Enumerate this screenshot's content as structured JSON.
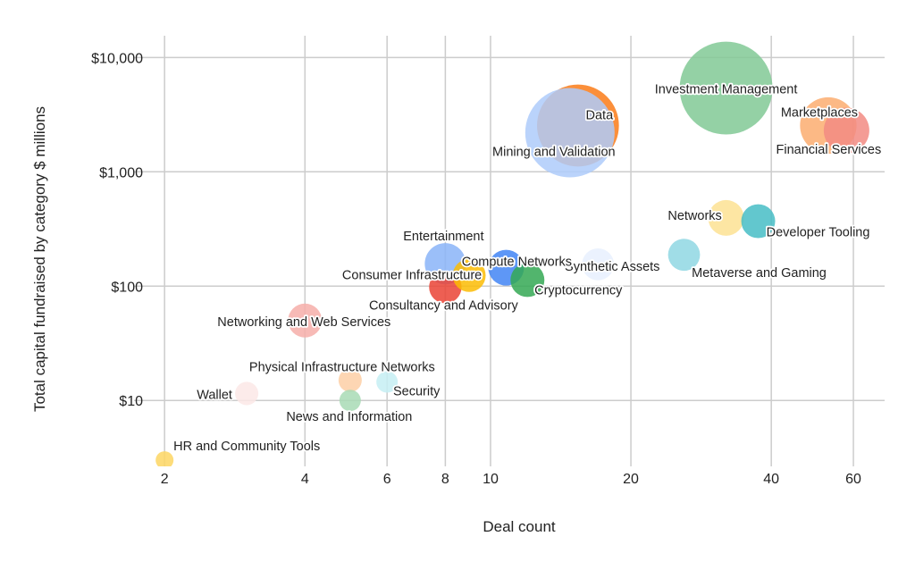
{
  "chart_data": {
    "type": "bubble",
    "title": "",
    "xlabel": "Deal count",
    "ylabel": "Total capital fundraised by category $ millions",
    "x_scale": "log",
    "y_scale": "log",
    "xlim": [
      1.72,
      70
    ],
    "ylim": [
      2.65,
      15500
    ],
    "grid": true,
    "x_ticks": [
      2,
      4,
      6,
      8,
      10,
      20,
      40,
      60
    ],
    "x_tick_labels": [
      "2",
      "4",
      "6",
      "8",
      "10",
      "20",
      "40",
      "60"
    ],
    "y_ticks": [
      10,
      100,
      1000,
      10000
    ],
    "y_tick_labels": [
      "$10",
      "$100",
      "$1,000",
      "$10,000"
    ],
    "points": [
      {
        "label": "Investment Management",
        "x": 32,
        "y": 5400,
        "size": 2700,
        "color": "#81c995"
      },
      {
        "label": "Data",
        "x": 15.4,
        "y": 2540,
        "size": 2100,
        "color": "#fa7b17"
      },
      {
        "label": "Mining and Validation",
        "x": 14.8,
        "y": 2200,
        "size": 2500,
        "color": "#aecbfa"
      },
      {
        "label": "Marketplaces",
        "x": 53,
        "y": 2540,
        "size": 1000,
        "color": "#fcad70"
      },
      {
        "label": "Financial Services",
        "x": 58,
        "y": 2300,
        "size": 650,
        "color": "#f28b82"
      },
      {
        "label": "Networks",
        "x": 32,
        "y": 395,
        "size": 400,
        "color": "#fde293"
      },
      {
        "label": "Developer Tooling",
        "x": 37.5,
        "y": 370,
        "size": 360,
        "color": "#46bdc6"
      },
      {
        "label": "Metaverse and Gaming",
        "x": 26,
        "y": 188,
        "size": 320,
        "color": "#8fd7e3"
      },
      {
        "label": "Synthetic Assets",
        "x": 17,
        "y": 155,
        "size": 320,
        "color": "#e8f0fe"
      },
      {
        "label": "Compute Networks",
        "x": 10.8,
        "y": 145,
        "size": 400,
        "color": "#4285f4"
      },
      {
        "label": "Entertainment",
        "x": 8,
        "y": 157,
        "size": 530,
        "color": "#8ab4f8"
      },
      {
        "label": "Consultancy and Advisory",
        "x": 8,
        "y": 98,
        "size": 330,
        "color": "#ea4335"
      },
      {
        "label": "Consumer Infrastructure",
        "x": 9,
        "y": 124,
        "size": 340,
        "color": "#fbbc04"
      },
      {
        "label": "Cryptocurrency",
        "x": 12,
        "y": 113,
        "size": 360,
        "color": "#34a853"
      },
      {
        "label": "Networking and Web Services",
        "x": 4,
        "y": 50,
        "size": 360,
        "color": "#f6aea9"
      },
      {
        "label": "Physical Infrastructure Networks",
        "x": 5,
        "y": 15,
        "size": 170,
        "color": "#fdcfa6"
      },
      {
        "label": "Security",
        "x": 6,
        "y": 14.5,
        "size": 144,
        "color": "#c6eef3"
      },
      {
        "label": "News and Information",
        "x": 5,
        "y": 10,
        "size": 144,
        "color": "#a8dab5"
      },
      {
        "label": "Wallet",
        "x": 3,
        "y": 11.5,
        "size": 170,
        "color": "#fce8e6"
      },
      {
        "label": "HR and Community Tools",
        "x": 2,
        "y": 3,
        "size": 100,
        "color": "#fdd663"
      }
    ]
  }
}
